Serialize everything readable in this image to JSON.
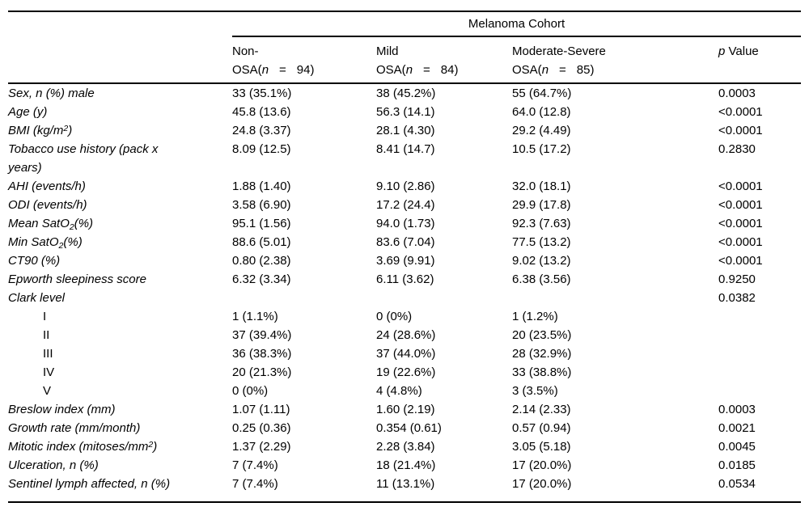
{
  "table": {
    "spanner_label": "Melanoma Cohort",
    "columns": [
      {
        "line1": "Non-",
        "osa_prefix": "OSA(",
        "n_italic": "n",
        "eq": "=",
        "count": "94)"
      },
      {
        "line1": "Mild",
        "osa_prefix": "OSA(",
        "n_italic": "n",
        "eq": "=",
        "count": "84)"
      },
      {
        "line1": "Moderate-Severe",
        "osa_prefix": "OSA(",
        "n_italic": "n",
        "eq": "=",
        "count": "85)"
      }
    ],
    "p_header": {
      "p": "p",
      "rest": "Value"
    },
    "rows": [
      {
        "label": [
          {
            "t": "Sex, n (%) male"
          }
        ],
        "values": [
          "33 (35.1%)",
          "38 (45.2%)",
          "55 (64.7%)"
        ],
        "p": "0.0003"
      },
      {
        "label": [
          {
            "t": "Age (y)"
          }
        ],
        "values": [
          "45.8 (13.6)",
          "56.3 (14.1)",
          "64.0 (12.8)"
        ],
        "p": "<0.0001"
      },
      {
        "label": [
          {
            "t": "BMI (kg/m"
          },
          {
            "t": "2",
            "v": "sup"
          },
          {
            "t": ")"
          }
        ],
        "values": [
          "24.8 (3.37)",
          "28.1 (4.30)",
          "29.2 (4.49)"
        ],
        "p": "<0.0001"
      },
      {
        "label": [
          {
            "t": "Tobacco use history (pack x"
          },
          {
            "t": "",
            "v": "br"
          },
          {
            "t": "years)"
          }
        ],
        "values": [
          "8.09 (12.5)",
          "8.41 (14.7)",
          "10.5 (17.2)"
        ],
        "p": "0.2830"
      },
      {
        "label": [
          {
            "t": "AHI (events/h)"
          }
        ],
        "values": [
          "1.88 (1.40)",
          "9.10 (2.86)",
          "32.0 (18.1)"
        ],
        "p": "<0.0001"
      },
      {
        "label": [
          {
            "t": "ODI (events/h)"
          }
        ],
        "values": [
          "3.58 (6.90)",
          "17.2 (24.4)",
          "29.9 (17.8)"
        ],
        "p": "<0.0001"
      },
      {
        "label": [
          {
            "t": "Mean SatO"
          },
          {
            "t": "2",
            "v": "sub"
          },
          {
            "t": "(%)"
          }
        ],
        "values": [
          "95.1 (1.56)",
          "94.0 (1.73)",
          "92.3 (7.63)"
        ],
        "p": "<0.0001"
      },
      {
        "label": [
          {
            "t": "Min SatO"
          },
          {
            "t": "2",
            "v": "sub"
          },
          {
            "t": "(%)"
          }
        ],
        "values": [
          "88.6 (5.01)",
          "83.6 (7.04)",
          "77.5 (13.2)"
        ],
        "p": "<0.0001"
      },
      {
        "label": [
          {
            "t": "CT90 (%)"
          }
        ],
        "values": [
          "0.80 (2.38)",
          "3.69 (9.91)",
          "9.02 (13.2)"
        ],
        "p": "<0.0001"
      },
      {
        "label": [
          {
            "t": "Epworth sleepiness score"
          }
        ],
        "values": [
          "6.32 (3.34)",
          "6.11 (3.62)",
          "6.38 (3.56)"
        ],
        "p": "0.9250"
      },
      {
        "label": [
          {
            "t": "Clark level"
          }
        ],
        "values": [
          "",
          "",
          ""
        ],
        "p": "0.0382"
      },
      {
        "label": [
          {
            "t": "I"
          }
        ],
        "indent": true,
        "italic": false,
        "values": [
          "1 (1.1%)",
          "0 (0%)",
          "1 (1.2%)"
        ],
        "p": ""
      },
      {
        "label": [
          {
            "t": "II"
          }
        ],
        "indent": true,
        "italic": false,
        "values": [
          "37 (39.4%)",
          "24 (28.6%)",
          "20 (23.5%)"
        ],
        "p": ""
      },
      {
        "label": [
          {
            "t": "III"
          }
        ],
        "indent": true,
        "italic": false,
        "values": [
          "36 (38.3%)",
          "37 (44.0%)",
          "28 (32.9%)"
        ],
        "p": ""
      },
      {
        "label": [
          {
            "t": "IV"
          }
        ],
        "indent": true,
        "italic": false,
        "values": [
          "20 (21.3%)",
          "19 (22.6%)",
          "33 (38.8%)"
        ],
        "p": ""
      },
      {
        "label": [
          {
            "t": "V"
          }
        ],
        "indent": true,
        "italic": false,
        "values": [
          "0 (0%)",
          "4 (4.8%)",
          "3 (3.5%)"
        ],
        "p": ""
      },
      {
        "label": [
          {
            "t": "Breslow index (mm)"
          }
        ],
        "values": [
          "1.07 (1.11)",
          "1.60 (2.19)",
          "2.14 (2.33)"
        ],
        "p": "0.0003"
      },
      {
        "label": [
          {
            "t": "Growth rate (mm/month)"
          }
        ],
        "values": [
          "0.25 (0.36)",
          "0.354 (0.61)",
          "0.57 (0.94)"
        ],
        "p": "0.0021"
      },
      {
        "label": [
          {
            "t": "Mitotic index (mitoses/mm"
          },
          {
            "t": "2",
            "v": "sup"
          },
          {
            "t": ")"
          }
        ],
        "values": [
          "1.37 (2.29)",
          "2.28 (3.84)",
          "3.05 (5.18)"
        ],
        "p": "0.0045"
      },
      {
        "label": [
          {
            "t": "Ulceration, n (%)"
          }
        ],
        "values": [
          "7 (7.4%)",
          "18 (21.4%)",
          "17 (20.0%)"
        ],
        "p": "0.0185"
      },
      {
        "label": [
          {
            "t": "Sentinel lymph affected, n (%)"
          }
        ],
        "values": [
          "7 (7.4%)",
          "11 (13.1%)",
          "17 (20.0%)"
        ],
        "p": "0.0534"
      }
    ]
  }
}
